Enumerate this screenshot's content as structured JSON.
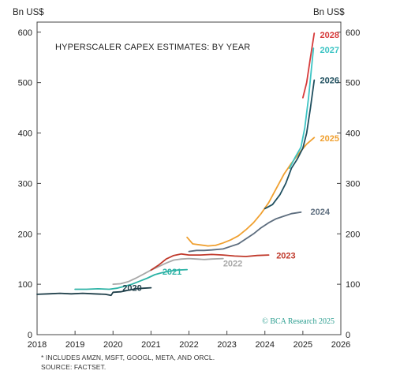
{
  "chart_data": {
    "type": "line",
    "title": "HYPERSCALER CAPEX ESTIMATES: BY YEAR",
    "ylabel_left": "Bn US$",
    "ylabel_right": "Bn US$",
    "xlim": [
      2018,
      2026
    ],
    "ylim": [
      0,
      620
    ],
    "x_ticks": [
      2018,
      2019,
      2020,
      2021,
      2022,
      2023,
      2024,
      2025,
      2026
    ],
    "y_ticks": [
      0,
      100,
      200,
      300,
      400,
      500,
      600
    ],
    "grid": false,
    "source_mark": "© BCA Research 2025",
    "footnote_line1": "* INCLUDES AMZN, MSFT, GOOGL, META, AND ORCL.",
    "footnote_line2": "SOURCE: FACTSET.",
    "series": [
      {
        "name": "2020",
        "color": "#1f3f4a",
        "label_pos": [
          2020.25,
          93
        ],
        "points": [
          [
            2018.0,
            80
          ],
          [
            2018.3,
            81
          ],
          [
            2018.6,
            82
          ],
          [
            2018.9,
            81
          ],
          [
            2019.2,
            82
          ],
          [
            2019.5,
            81
          ],
          [
            2019.8,
            80
          ],
          [
            2019.95,
            78
          ],
          [
            2020.0,
            84
          ],
          [
            2020.2,
            85
          ],
          [
            2020.4,
            88
          ],
          [
            2020.6,
            91
          ],
          [
            2020.8,
            92
          ],
          [
            2021.0,
            93
          ]
        ]
      },
      {
        "name": "2021",
        "color": "#2db3a6",
        "label_pos": [
          2021.3,
          125
        ],
        "points": [
          [
            2019.0,
            90
          ],
          [
            2019.3,
            90
          ],
          [
            2019.6,
            91
          ],
          [
            2019.9,
            90
          ],
          [
            2020.1,
            92
          ],
          [
            2020.3,
            96
          ],
          [
            2020.5,
            100
          ],
          [
            2020.7,
            106
          ],
          [
            2020.9,
            112
          ],
          [
            2021.1,
            119
          ],
          [
            2021.3,
            123
          ],
          [
            2021.5,
            126
          ],
          [
            2021.7,
            128
          ],
          [
            2021.95,
            129
          ]
        ]
      },
      {
        "name": "2022",
        "color": "#a8a8a8",
        "label_pos": [
          2022.9,
          142
        ],
        "points": [
          [
            2020.0,
            100
          ],
          [
            2020.2,
            101
          ],
          [
            2020.4,
            105
          ],
          [
            2020.6,
            112
          ],
          [
            2020.8,
            120
          ],
          [
            2021.0,
            128
          ],
          [
            2021.2,
            135
          ],
          [
            2021.4,
            142
          ],
          [
            2021.6,
            148
          ],
          [
            2021.8,
            150
          ],
          [
            2022.0,
            151
          ],
          [
            2022.2,
            150
          ],
          [
            2022.4,
            149
          ],
          [
            2022.6,
            150
          ],
          [
            2022.9,
            151
          ]
        ]
      },
      {
        "name": "2023",
        "color": "#c0392b",
        "label_pos": [
          2024.3,
          157
        ],
        "points": [
          [
            2021.0,
            128
          ],
          [
            2021.2,
            138
          ],
          [
            2021.4,
            150
          ],
          [
            2021.6,
            157
          ],
          [
            2021.8,
            160
          ],
          [
            2022.0,
            158
          ],
          [
            2022.3,
            158
          ],
          [
            2022.6,
            159
          ],
          [
            2022.9,
            158
          ],
          [
            2023.2,
            156
          ],
          [
            2023.5,
            155
          ],
          [
            2023.8,
            157
          ],
          [
            2024.1,
            158
          ]
        ]
      },
      {
        "name": "2024",
        "color": "#5d6d7e",
        "label_pos": [
          2025.2,
          244
        ],
        "points": [
          [
            2022.0,
            165
          ],
          [
            2022.2,
            167
          ],
          [
            2022.4,
            167
          ],
          [
            2022.6,
            168
          ],
          [
            2022.9,
            170
          ],
          [
            2023.1,
            175
          ],
          [
            2023.3,
            180
          ],
          [
            2023.5,
            190
          ],
          [
            2023.7,
            200
          ],
          [
            2023.9,
            212
          ],
          [
            2024.1,
            222
          ],
          [
            2024.3,
            230
          ],
          [
            2024.5,
            235
          ],
          [
            2024.7,
            240
          ],
          [
            2024.95,
            243
          ]
        ]
      },
      {
        "name": "2025",
        "color": "#f0a030",
        "label_pos": [
          2025.45,
          390
        ],
        "points": [
          [
            2021.95,
            193
          ],
          [
            2022.1,
            180
          ],
          [
            2022.3,
            178
          ],
          [
            2022.5,
            176
          ],
          [
            2022.7,
            177
          ],
          [
            2022.9,
            182
          ],
          [
            2023.1,
            188
          ],
          [
            2023.3,
            196
          ],
          [
            2023.5,
            208
          ],
          [
            2023.7,
            222
          ],
          [
            2023.9,
            240
          ],
          [
            2024.1,
            262
          ],
          [
            2024.3,
            290
          ],
          [
            2024.5,
            318
          ],
          [
            2024.7,
            340
          ],
          [
            2024.9,
            360
          ],
          [
            2025.1,
            378
          ],
          [
            2025.3,
            391
          ]
        ]
      },
      {
        "name": "2026",
        "color": "#1f4f5f",
        "label_pos": [
          2025.45,
          505
        ],
        "points": [
          [
            2024.0,
            250
          ],
          [
            2024.2,
            258
          ],
          [
            2024.4,
            278
          ],
          [
            2024.55,
            300
          ],
          [
            2024.7,
            330
          ],
          [
            2024.85,
            348
          ],
          [
            2025.0,
            370
          ],
          [
            2025.1,
            400
          ],
          [
            2025.2,
            450
          ],
          [
            2025.3,
            505
          ]
        ]
      },
      {
        "name": "2027",
        "color": "#3cc4c4",
        "label_pos": [
          2025.45,
          565
        ],
        "points": [
          [
            2024.65,
            330
          ],
          [
            2024.8,
            352
          ],
          [
            2024.95,
            372
          ],
          [
            2025.05,
            410
          ],
          [
            2025.15,
            470
          ],
          [
            2025.28,
            568
          ]
        ]
      },
      {
        "name": "2028",
        "color": "#d63a3a",
        "label_pos": [
          2025.45,
          595
        ],
        "points": [
          [
            2025.0,
            470
          ],
          [
            2025.1,
            500
          ],
          [
            2025.2,
            550
          ],
          [
            2025.3,
            598
          ]
        ]
      }
    ]
  }
}
